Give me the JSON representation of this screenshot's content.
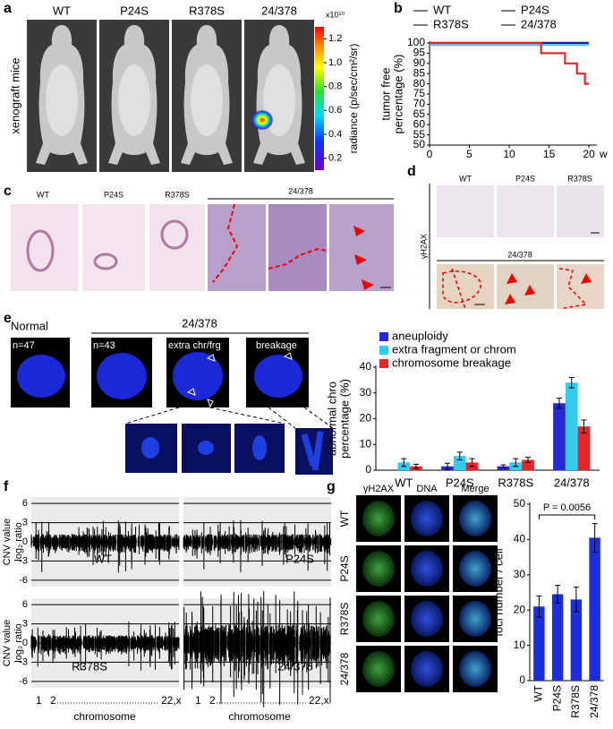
{
  "panel_labels": [
    "a",
    "b",
    "c",
    "d",
    "e",
    "f",
    "g"
  ],
  "panel_a": {
    "genotypes": [
      "WT",
      "P24S",
      "R378S",
      "24/378"
    ],
    "side_label": "xenograft mice",
    "colorbar": {
      "label": "radiance (p/sec/cm²/sr)",
      "scale_label": "x10¹⁰",
      "lim": [
        0.1,
        1.3
      ],
      "ticks": [
        0.2,
        0.4,
        0.6,
        0.8,
        {
          "value": 1,
          "label": "1.0"
        },
        1.2
      ]
    }
  },
  "panel_c": {
    "genotypes": [
      "WT",
      "P24S",
      "R378S",
      "24/378"
    ]
  },
  "panel_d": {
    "stain": "γH2AX",
    "genotypes": [
      "WT",
      "P24S",
      "R378S"
    ],
    "group": "24/378"
  },
  "panel_e": {
    "normal": "Normal",
    "group": "24/378",
    "counts": [
      "n=47",
      "n=43"
    ],
    "types": [
      "extra chr/frg",
      "breakage"
    ]
  },
  "panel_f": {
    "genotypes": [
      "WT",
      "P24S",
      "R378S",
      "24/378"
    ],
    "y_label": [
      "CNV value",
      "log₂ ratio"
    ],
    "ylim": [
      -7,
      7
    ],
    "yticks": [
      6,
      3,
      0,
      -3,
      -6
    ],
    "x_labels": [
      "1",
      "2",
      "22,x"
    ],
    "x_label": "chromosome"
  },
  "panel_g": {
    "columns": [
      "γH2AX",
      "DNA",
      "Merge"
    ],
    "rows": [
      "WT",
      "P24S",
      "R378S",
      "24/378"
    ]
  },
  "chart_data": [
    {
      "type": "line",
      "y_label": [
        "tumor free",
        "percentage (%)"
      ],
      "x_unit": "w",
      "xlim": [
        0,
        21
      ],
      "xticks": [
        0,
        5,
        10,
        15,
        20
      ],
      "ylim": [
        50,
        100
      ],
      "yticks": [
        50,
        55,
        60,
        65,
        70,
        75,
        80,
        85,
        90,
        95,
        100
      ],
      "series": [
        {
          "name": "WT",
          "color": "#000000",
          "x": [
            0,
            20
          ],
          "values": [
            100,
            100
          ]
        },
        {
          "name": "P24S",
          "color": "#1020b0",
          "x": [
            0,
            20
          ],
          "values": [
            100,
            100
          ]
        },
        {
          "name": "R378S",
          "color": "#5cc8f2",
          "x": [
            0,
            20
          ],
          "values": [
            99,
            99
          ]
        },
        {
          "name": "24/378",
          "color": "#e8262a",
          "x": [
            0,
            14,
            14,
            17,
            17,
            18.5,
            18.5,
            19.5,
            19.5,
            20
          ],
          "values": [
            100,
            100,
            95,
            95,
            90,
            90,
            85,
            85,
            80,
            80
          ]
        }
      ]
    },
    {
      "type": "bar",
      "y_label": [
        "abnormal chro",
        "percentage (%)"
      ],
      "categories": [
        "WT",
        "P24S",
        "R378S",
        "24/378"
      ],
      "ylim": [
        0,
        40
      ],
      "yticks": [
        0,
        10,
        20,
        30,
        40
      ],
      "series": [
        {
          "name": "aneuploidy",
          "color": "#2727d6",
          "values": [
            0,
            1.5,
            1.5,
            26
          ],
          "errors": [
            0,
            1.2,
            0.6,
            2
          ]
        },
        {
          "name": "extra fragment or chrom",
          "color": "#33ccee",
          "values": [
            3,
            5.5,
            3,
            34
          ],
          "errors": [
            1.5,
            1.5,
            1.5,
            2
          ]
        },
        {
          "name": "chromosome breakage",
          "color": "#e8262a",
          "values": [
            1.5,
            3,
            4,
            17
          ],
          "errors": [
            0.8,
            1.5,
            1,
            2.5
          ]
        }
      ]
    },
    {
      "type": "bar",
      "y_label": [
        "foci number / cell"
      ],
      "categories": [
        "WT",
        "P24S",
        "R378S",
        "24/378"
      ],
      "ylim": [
        0,
        50
      ],
      "yticks": [
        0,
        10,
        20,
        30,
        40,
        50
      ],
      "color": "#1a2ee0",
      "values": [
        21,
        24.5,
        23,
        40.5
      ],
      "errors": [
        3,
        2.5,
        3.5,
        4
      ],
      "annotation": "P = 0.0056"
    }
  ]
}
